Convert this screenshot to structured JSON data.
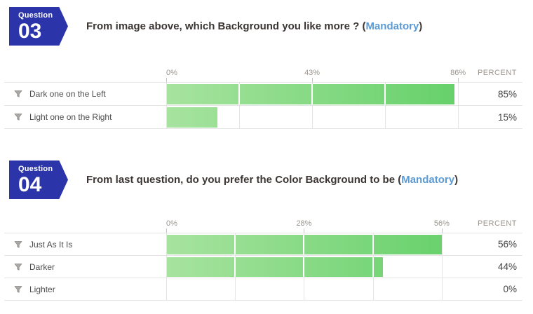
{
  "colors": {
    "badge_blue": "#2b34a8",
    "mandatory_blue": "#5b9bd5",
    "bar_gradient_start": "#a7e39f",
    "bar_gradient_end": "#65d069",
    "gridline": "#e5e5e3"
  },
  "questions": [
    {
      "badge_label": "Question",
      "badge_number": "03",
      "title": "From image above, which Background you like more ?",
      "paren_open": "(",
      "mandatory_label": "Mandatory",
      "paren_close": ")"
    },
    {
      "badge_label": "Question",
      "badge_number": "04",
      "title": "From last question, do you prefer the Color Background to be",
      "paren_open": "(",
      "mandatory_label": "Mandatory",
      "paren_close": ")"
    }
  ],
  "chart_data": [
    {
      "type": "bar",
      "title": "From image above, which Background you like more ?",
      "categories": [
        "Dark one on the Left",
        "Light one on the Right"
      ],
      "values": [
        85,
        15
      ],
      "value_labels": [
        "85%",
        "15%"
      ],
      "percent_header": "PERCENT",
      "xlim": [
        0,
        87
      ],
      "ticks": [
        {
          "value": 0,
          "label": "0%"
        },
        {
          "value": 43,
          "label": "43%"
        },
        {
          "value": 86,
          "label": "86%"
        }
      ],
      "gridlines": [
        0,
        21.5,
        43,
        64.5,
        86
      ],
      "grid": true,
      "legend": false,
      "orientation": "horizontal"
    },
    {
      "type": "bar",
      "title": "From last question, do you prefer the Color Background to be",
      "categories": [
        "Just As It Is",
        "Darker",
        "Lighter"
      ],
      "values": [
        56,
        44,
        0
      ],
      "value_labels": [
        "56%",
        "44%",
        "0%"
      ],
      "percent_header": "PERCENT",
      "xlim": [
        0,
        60
      ],
      "ticks": [
        {
          "value": 0,
          "label": "0%"
        },
        {
          "value": 28,
          "label": "28%"
        },
        {
          "value": 56,
          "label": "56%"
        }
      ],
      "gridlines": [
        0,
        14,
        28,
        42,
        56
      ],
      "grid": true,
      "legend": false,
      "orientation": "horizontal"
    }
  ]
}
